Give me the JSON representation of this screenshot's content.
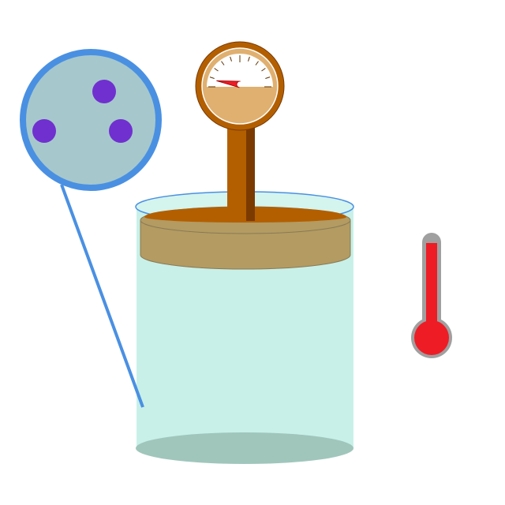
{
  "diagram": {
    "colors": {
      "background": "#ffffff",
      "gas": "#c8f0e8",
      "gas_shadow": "#a0c6bc",
      "container_rim": "#4a90e2",
      "piston": "#b39b62",
      "piston_rod": "#b35f00",
      "gauge_face": "#e0b070",
      "needle": "#ee1c25",
      "zoom_circle": "#a6c8cc",
      "zoom_ring": "#4a90e2",
      "particle": "#7030d0",
      "thermometer": "#ee1c25",
      "thermometer_case": "#a0a0a0"
    },
    "pressure_gauge": {
      "reading_fraction": 0.05,
      "tick_count": 11
    },
    "thermometer": {
      "level_fraction": 0.9
    },
    "zoom": {
      "particle_count": 3
    }
  }
}
